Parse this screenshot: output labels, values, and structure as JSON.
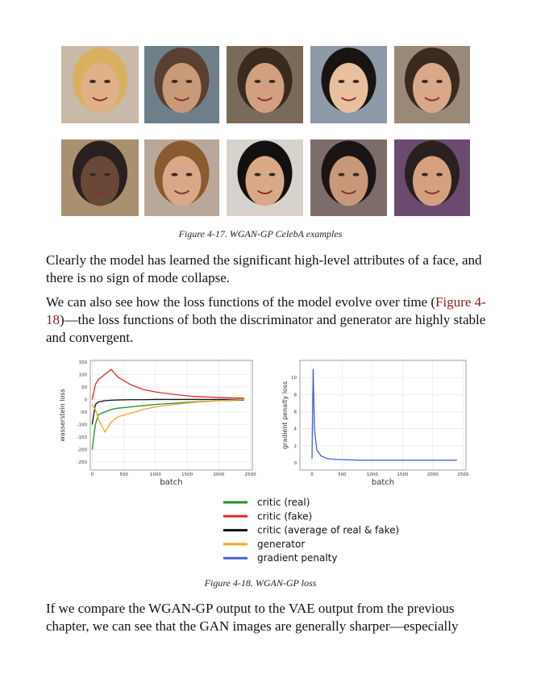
{
  "figure_1": {
    "caption": "Figure 4-17. WGAN-GP CelebA examples"
  },
  "paragraphs": [
    {
      "text": "Clearly the model has learned the significant high-level attributes of a face, and there is no sign of mode collapse."
    },
    {
      "before": "We can also see how the loss functions of the model evolve over time (",
      "link": "Figure 4-18",
      "after": ")—the loss functions of both the discriminator and generator are highly stable and convergent."
    }
  ],
  "chart_data": [
    {
      "type": "line",
      "ylabel": "wasserstein loss",
      "xlabel": "batch",
      "xlim": [
        -30,
        2530
      ],
      "ylim": [
        -282,
        156
      ],
      "xticks": [
        0,
        500,
        1000,
        1500,
        2000,
        2500
      ],
      "yticks": [
        150,
        100,
        50,
        0,
        -50,
        -100,
        -150,
        -200,
        -250
      ],
      "x": [
        0,
        50,
        100,
        200,
        300,
        400,
        600,
        800,
        1000,
        1300,
        1600,
        2000,
        2400
      ],
      "series": [
        {
          "name": "critic (real)",
          "color": "#2a8a2a",
          "values": [
            -200,
            -100,
            -60,
            -50,
            -40,
            -35,
            -30,
            -25,
            -20,
            -15,
            -10,
            -5,
            -3
          ]
        },
        {
          "name": "critic (fake)",
          "color": "#e8262b",
          "values": [
            0,
            60,
            80,
            100,
            120,
            90,
            60,
            40,
            30,
            20,
            12,
            8,
            5
          ]
        },
        {
          "name": "critic (average of real & fake)",
          "color": "#111111",
          "values": [
            -100,
            -20,
            -10,
            -5,
            -3,
            -2,
            -1,
            -1,
            0,
            0,
            0,
            0,
            0
          ]
        },
        {
          "name": "generator",
          "color": "#f5a623",
          "values": [
            -20,
            -40,
            -80,
            -130,
            -90,
            -70,
            -55,
            -40,
            -30,
            -20,
            -12,
            -5,
            0
          ]
        }
      ]
    },
    {
      "type": "line",
      "ylabel": "gradient penalty loss",
      "xlabel": "batch",
      "xlim": [
        -200,
        2550
      ],
      "ylim": [
        -0.85,
        12
      ],
      "xticks": [
        0,
        500,
        1000,
        1500,
        2000,
        2500
      ],
      "yticks": [
        0,
        2,
        4,
        6,
        8,
        10
      ],
      "x": [
        0,
        20,
        40,
        80,
        150,
        250,
        400,
        800,
        1500,
        2400
      ],
      "series": [
        {
          "name": "gradient penalty",
          "color": "#4a5fd8",
          "values": [
            0.5,
            11,
            4,
            1.5,
            0.8,
            0.5,
            0.4,
            0.3,
            0.3,
            0.3
          ]
        }
      ]
    }
  ],
  "figure_2": {
    "caption": "Figure 4-18. WGAN-GP loss"
  },
  "paragraph_3": {
    "text": "If we compare the WGAN-GP output to the VAE output from the previous chapter, we can see that the GAN images are generally sharper—especially"
  }
}
